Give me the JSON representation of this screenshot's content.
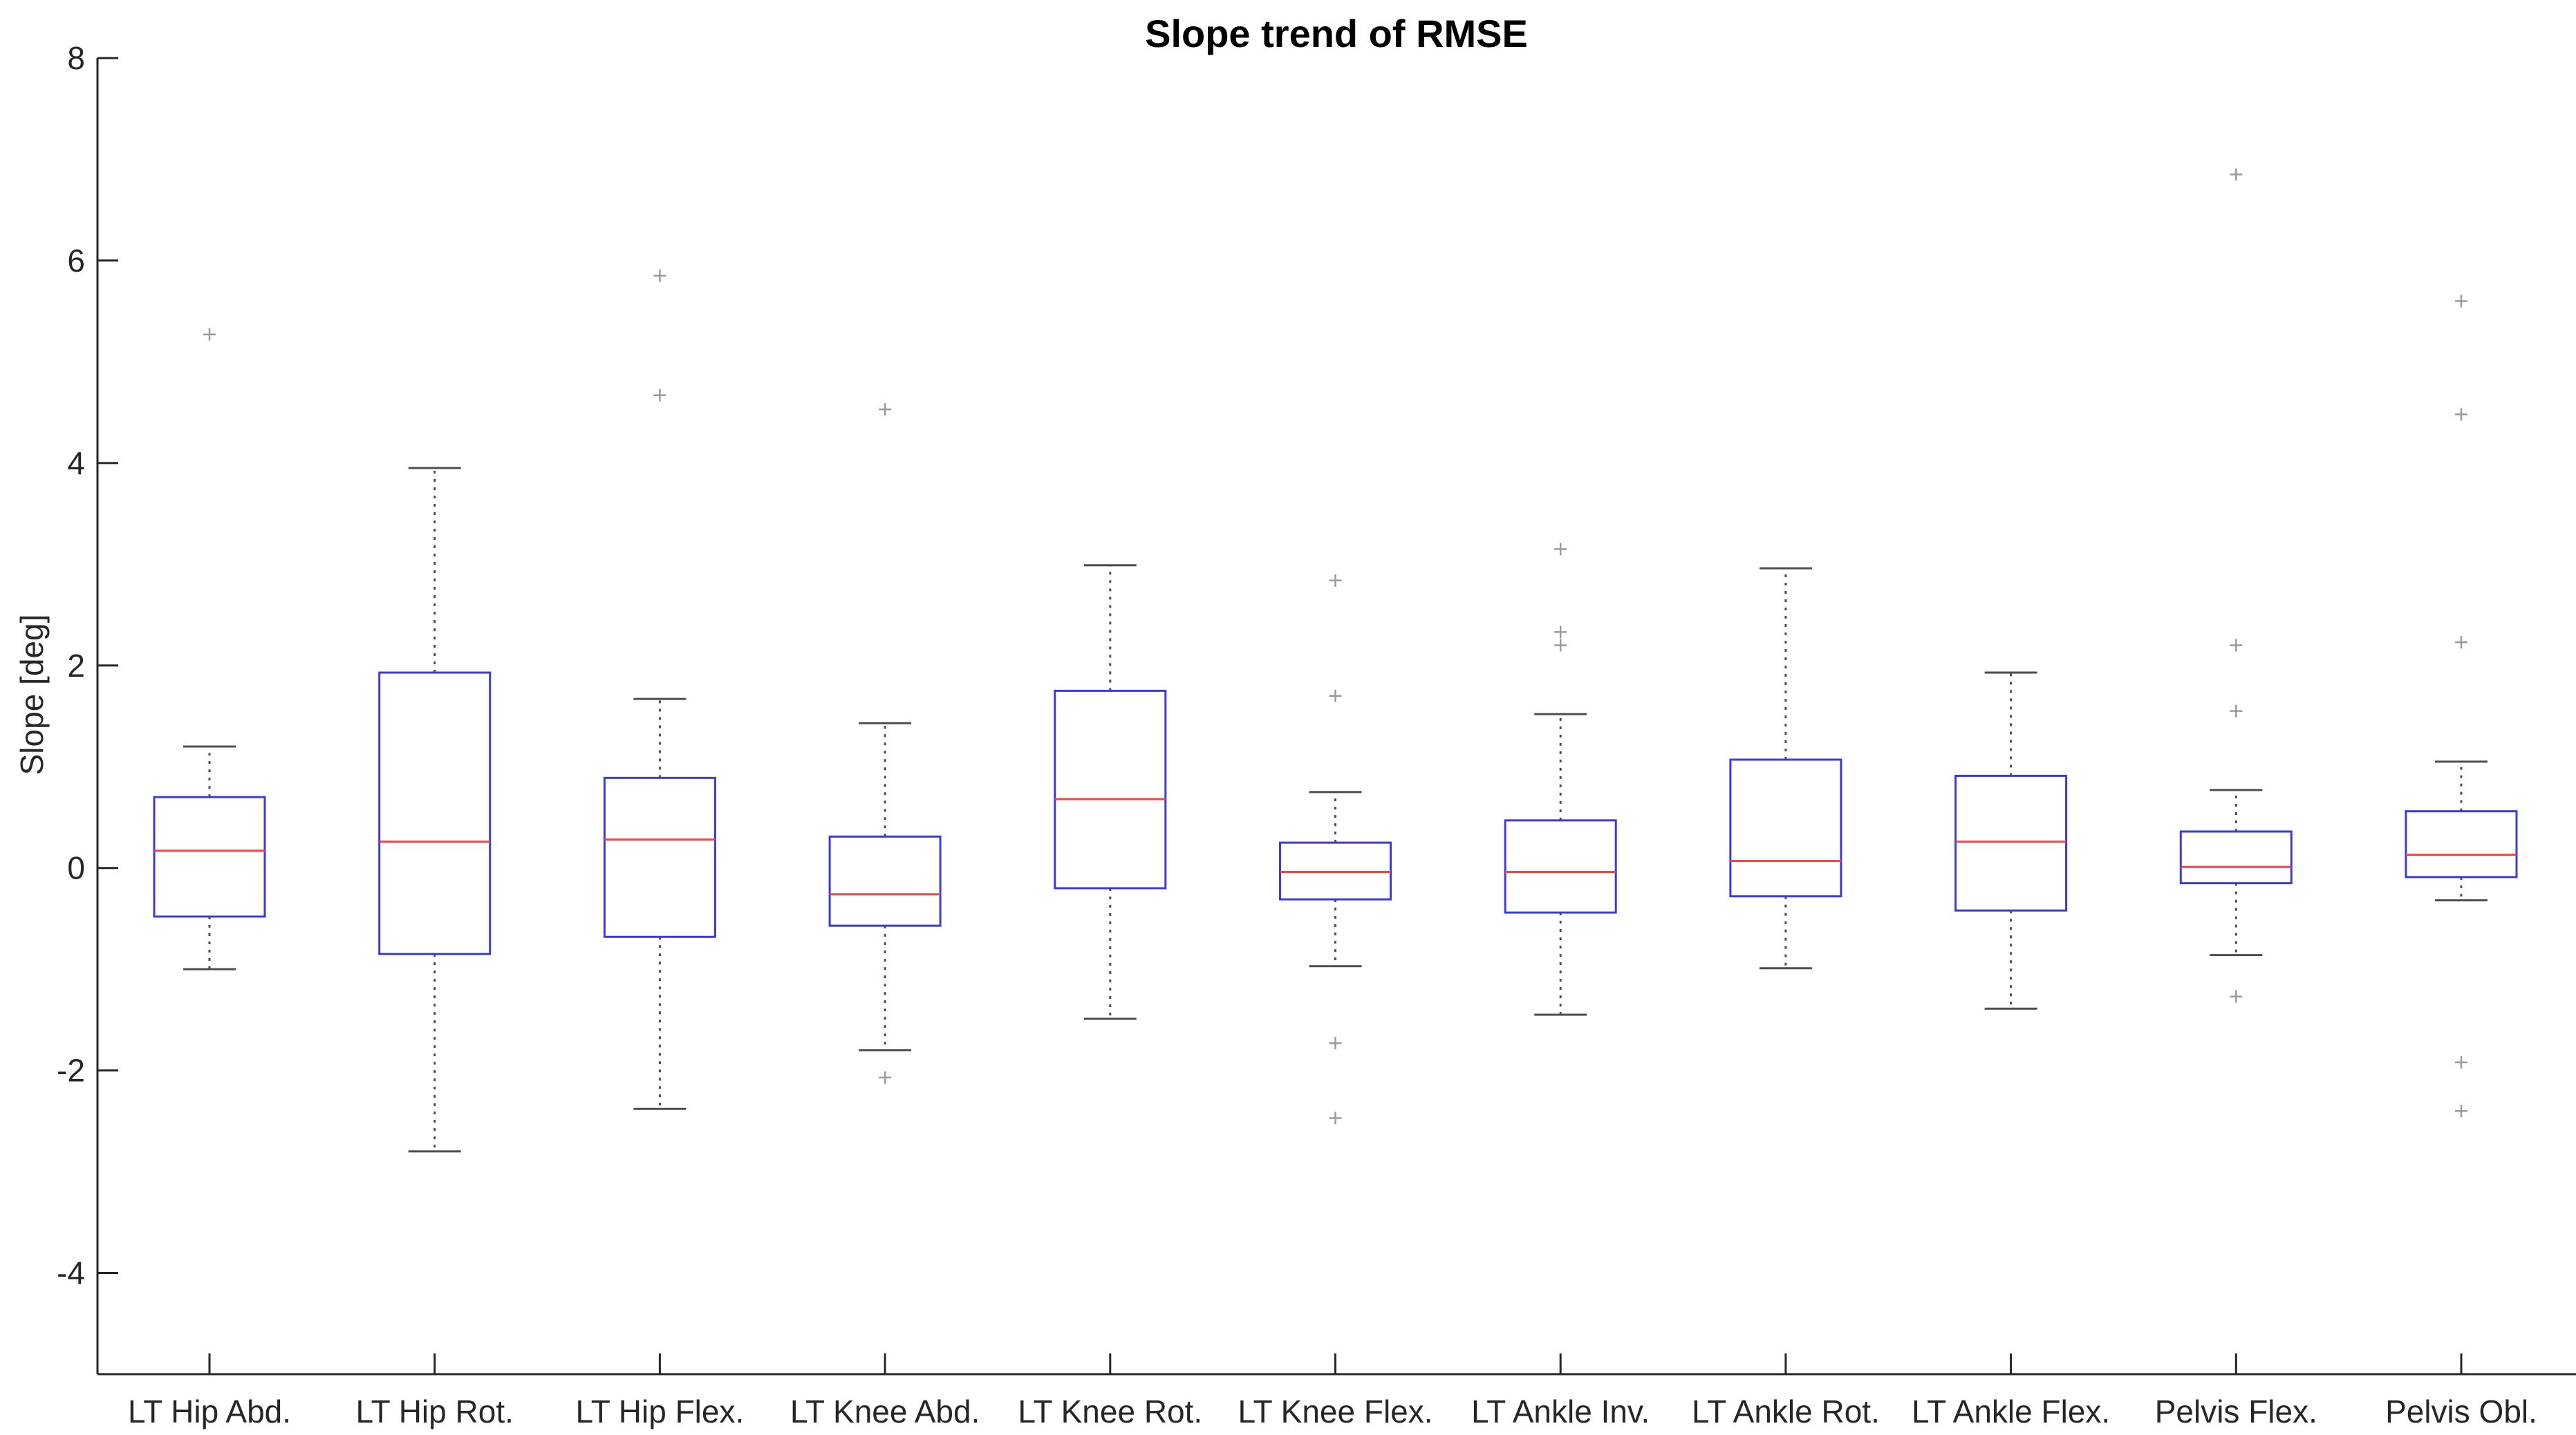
{
  "chart_data": {
    "type": "boxplot",
    "title": "Slope trend of RMSE",
    "xlabel": "",
    "ylabel": "Slope [deg]",
    "ylim": [
      -5,
      8
    ],
    "yticks": [
      -4,
      -2,
      0,
      2,
      4,
      6,
      8
    ],
    "grid": false,
    "colors": {
      "box": "#3b3bd9",
      "median": "#ff4040",
      "whisker": "#4d4d4d",
      "outlier": "#9a9a9a",
      "axis": "#262626"
    },
    "categories": [
      "LT Hip Abd.",
      "LT Hip Rot.",
      "LT Hip Flex.",
      "LT Knee Abd.",
      "LT Knee Rot.",
      "LT Knee Flex.",
      "LT Ankle Inv.",
      "LT Ankle Rot.",
      "LT Ankle Flex.",
      "Pelvis Flex.",
      "Pelvis Obl."
    ],
    "boxes": [
      {
        "whisker_low": -1.0,
        "q1": -0.48,
        "median": 0.17,
        "q3": 0.7,
        "whisker_high": 1.2,
        "outliers": [
          5.27
        ]
      },
      {
        "whisker_low": -2.8,
        "q1": -0.85,
        "median": 0.26,
        "q3": 1.93,
        "whisker_high": 3.95,
        "outliers": []
      },
      {
        "whisker_low": -2.38,
        "q1": -0.68,
        "median": 0.28,
        "q3": 0.89,
        "whisker_high": 1.67,
        "outliers": [
          5.85,
          4.67
        ]
      },
      {
        "whisker_low": -1.8,
        "q1": -0.57,
        "median": -0.26,
        "q3": 0.31,
        "whisker_high": 1.43,
        "outliers": [
          4.53,
          -2.07
        ]
      },
      {
        "whisker_low": -1.49,
        "q1": -0.2,
        "median": 0.68,
        "q3": 1.75,
        "whisker_high": 2.99,
        "outliers": []
      },
      {
        "whisker_low": -0.97,
        "q1": -0.31,
        "median": -0.04,
        "q3": 0.25,
        "whisker_high": 0.75,
        "outliers": [
          2.84,
          1.7,
          -1.73,
          -2.47
        ]
      },
      {
        "whisker_low": -1.45,
        "q1": -0.44,
        "median": -0.04,
        "q3": 0.47,
        "whisker_high": 1.52,
        "outliers": [
          3.15,
          2.33,
          2.2
        ]
      },
      {
        "whisker_low": -0.99,
        "q1": -0.28,
        "median": 0.07,
        "q3": 1.07,
        "whisker_high": 2.96,
        "outliers": []
      },
      {
        "whisker_low": -1.39,
        "q1": -0.42,
        "median": 0.26,
        "q3": 0.91,
        "whisker_high": 1.93,
        "outliers": []
      },
      {
        "whisker_low": -0.86,
        "q1": -0.15,
        "median": 0.01,
        "q3": 0.36,
        "whisker_high": 0.77,
        "outliers": [
          6.85,
          2.2,
          1.55,
          -1.27
        ]
      },
      {
        "whisker_low": -0.32,
        "q1": -0.09,
        "median": 0.13,
        "q3": 0.56,
        "whisker_high": 1.05,
        "outliers": [
          5.6,
          4.48,
          2.23,
          -1.92,
          -2.4
        ]
      }
    ]
  }
}
